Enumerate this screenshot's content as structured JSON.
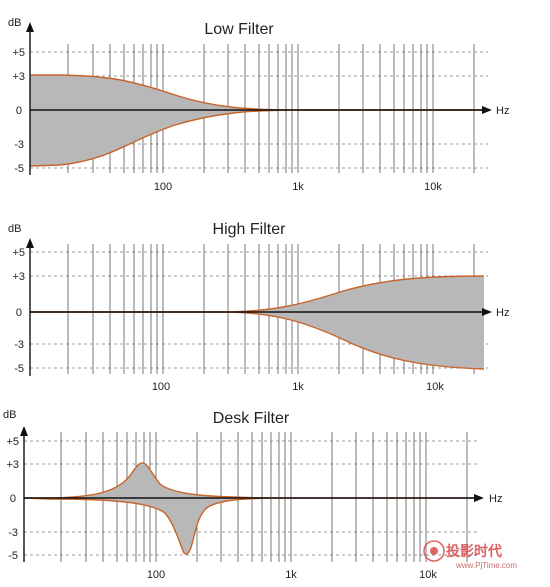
{
  "panels": [
    {
      "id": "low",
      "title": "Low Filter",
      "y_unit": "dB",
      "x_unit": "Hz",
      "y_ticks": [
        "+5",
        "+3",
        "0",
        "-3",
        "-5"
      ],
      "x_ticks": [
        "100",
        "1k",
        "10k"
      ]
    },
    {
      "id": "high",
      "title": "High Filter",
      "y_unit": "dB",
      "x_unit": "Hz",
      "y_ticks": [
        "+5",
        "+3",
        "0",
        "-3",
        "-5"
      ],
      "x_ticks": [
        "100",
        "1k",
        "10k"
      ]
    },
    {
      "id": "desk",
      "title": "Desk Filter",
      "y_unit": "dB",
      "x_unit": "Hz",
      "y_ticks": [
        "+5",
        "+3",
        "0",
        "-3",
        "-5"
      ],
      "x_ticks": [
        "100",
        "1k",
        "10k"
      ]
    }
  ],
  "watermark": {
    "text": "投影时代",
    "url": "www.PjTime.com"
  },
  "colors": {
    "curve": "#c8642a",
    "fill": "#b8b8b8",
    "grid": "#555555",
    "axis": "#111111"
  }
}
